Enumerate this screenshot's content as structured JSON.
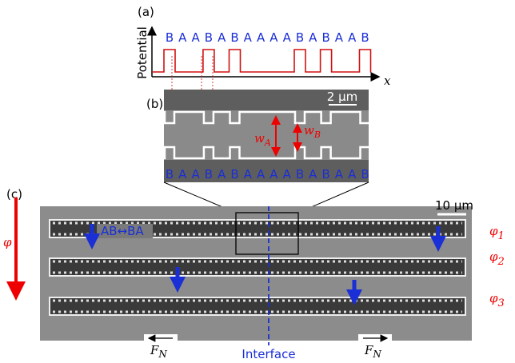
{
  "panel_a": {
    "label": "(a)",
    "y_label": "Potential",
    "x_label": "x",
    "sequence": [
      "B",
      "A",
      "A",
      "B",
      "A",
      "B",
      "A",
      "A",
      "A",
      "A",
      "B",
      "A",
      "B",
      "A",
      "A",
      "B"
    ]
  },
  "panel_b": {
    "label": "(b)",
    "scale_bar": "2 μm",
    "width_a": {
      "symbol": "w",
      "sub": "A"
    },
    "width_b": {
      "symbol": "w",
      "sub": "B"
    },
    "sequence": [
      "B",
      "A",
      "A",
      "B",
      "A",
      "B",
      "A",
      "A",
      "A",
      "A",
      "B",
      "A",
      "B",
      "A",
      "A",
      "B"
    ]
  },
  "panel_c": {
    "label": "(c)",
    "scale_bar": "10 μm",
    "phi": "φ",
    "swap_label": "AB↔BA",
    "rows": [
      {
        "symbol": "φ",
        "sub": "1"
      },
      {
        "symbol": "φ",
        "sub": "2"
      },
      {
        "symbol": "φ",
        "sub": "3"
      }
    ],
    "forces": [
      {
        "symbol": "F",
        "sub": "N"
      },
      {
        "symbol": "F",
        "sub": "N"
      }
    ],
    "interface": "Interface"
  }
}
